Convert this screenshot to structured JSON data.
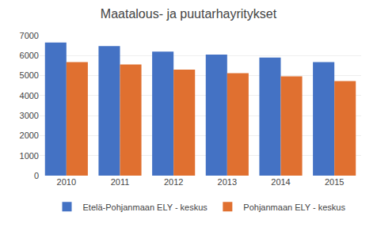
{
  "chart_data": {
    "type": "bar",
    "title": "Maatalous- ja puutarhayritykset",
    "categories": [
      "2010",
      "2011",
      "2012",
      "2013",
      "2014",
      "2015"
    ],
    "series": [
      {
        "name": "Etelä-Pohjanmaan ELY - keskus",
        "color": "#4472C4",
        "values": [
          6650,
          6480,
          6200,
          6050,
          5900,
          5680
        ]
      },
      {
        "name": "Pohjanmaan ELY - keskus",
        "color": "#E07030",
        "values": [
          5680,
          5560,
          5300,
          5120,
          4960,
          4730
        ]
      }
    ],
    "ylim": [
      0,
      7000
    ],
    "yticks": [
      0,
      1000,
      2000,
      3000,
      4000,
      5000,
      6000,
      7000
    ],
    "grid": true,
    "legend": "bottom"
  }
}
